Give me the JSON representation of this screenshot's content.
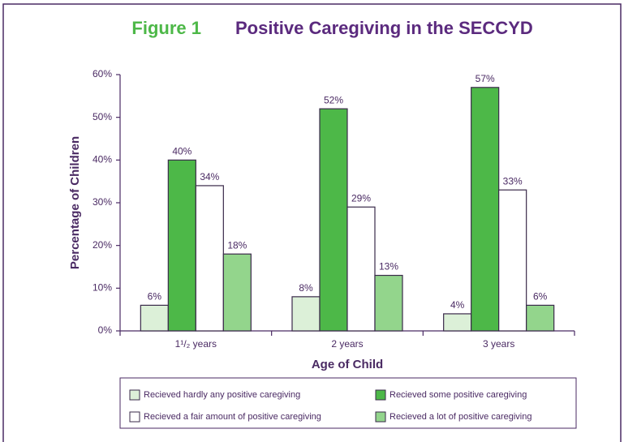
{
  "chart_data": {
    "type": "bar",
    "figure_label": "Figure 1",
    "title": "Positive Caregiving in the SECCYD",
    "x_label": "Age of Child",
    "y_label": "Percentage of Children",
    "categories": [
      "1¹/₂ years",
      "2 years",
      "3 years"
    ],
    "series": [
      {
        "name": "Recieved hardly any positive caregiving",
        "color": "#dcf0d8",
        "values": [
          6,
          8,
          4
        ],
        "value_labels": [
          "6%",
          "8%",
          "4%"
        ]
      },
      {
        "name": "Recieved some positive caregiving",
        "color": "#4db848",
        "values": [
          40,
          52,
          57
        ],
        "value_labels": [
          "40%",
          "52%",
          "57%"
        ]
      },
      {
        "name": "Recieved a fair amount of positive caregiving",
        "color": "#ffffff",
        "values": [
          34,
          29,
          33
        ],
        "value_labels": [
          "34%",
          "29%",
          "33%"
        ]
      },
      {
        "name": "Recieved a lot of positive caregiving",
        "color": "#93d58c",
        "values": [
          18,
          13,
          6
        ],
        "value_labels": [
          "18%",
          "13%",
          "6%"
        ]
      }
    ],
    "ylim": [
      0,
      60
    ],
    "yticks": [
      {
        "value": 0,
        "label": "0%"
      },
      {
        "value": 10,
        "label": "10%"
      },
      {
        "value": 20,
        "label": "20%"
      },
      {
        "value": 30,
        "label": "30%"
      },
      {
        "value": 40,
        "label": "40%"
      },
      {
        "value": 50,
        "label": "50%"
      },
      {
        "value": 60,
        "label": "60%"
      }
    ],
    "legend": "bottom"
  }
}
